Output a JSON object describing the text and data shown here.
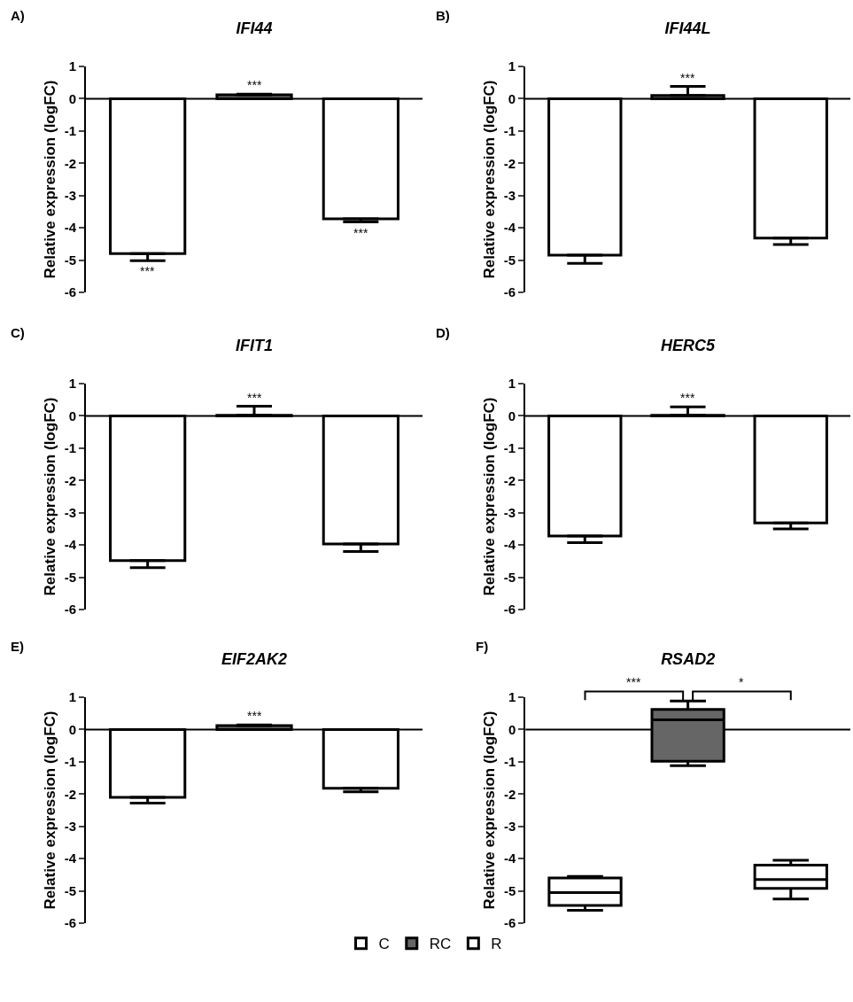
{
  "chart_data": [
    {
      "type": "bar",
      "subtitle": "A)",
      "title": "IFI44",
      "ref_lines": [
        {
          "axis": "y",
          "value": 0
        }
      ],
      "ylabel": "Relative expression (logFC)",
      "categories": [
        null
      ],
      "ylim": [
        -6,
        1
      ],
      "yticks": [
        -6,
        -5,
        -4,
        -3,
        -2,
        -1,
        0,
        1
      ],
      "grid": false,
      "legend": false,
      "tick_labels": "y",
      "series": [
        {
          "color": "#ffffff",
          "values": [
            -4.8
          ],
          "errors": [
            [
              -5.02,
              -4.8
            ]
          ],
          "value_labels": [
            "***"
          ]
        },
        {
          "color": "#666666",
          "values": [
            0.12
          ],
          "errors": [
            [
              0.12,
              0.14
            ]
          ],
          "value_labels": [
            "***"
          ]
        },
        {
          "color": "#ffffff",
          "values": [
            -3.72
          ],
          "errors": [
            [
              -3.82,
              -3.72
            ]
          ],
          "value_labels": [
            "***"
          ]
        }
      ]
    },
    {
      "type": "bar",
      "subtitle": "B)",
      "title": "IFI44L",
      "ref_lines": [
        {
          "axis": "y",
          "value": 0
        }
      ],
      "ylabel": "Relative expression (logFC)",
      "categories": [
        null
      ],
      "ylim": [
        -6,
        1
      ],
      "yticks": [
        -6,
        -5,
        -4,
        -3,
        -2,
        -1,
        0,
        1
      ],
      "grid": false,
      "legend": false,
      "tick_labels": "y",
      "series": [
        {
          "color": "#ffffff",
          "values": [
            -4.85
          ],
          "errors": [
            [
              -5.1,
              -4.85
            ]
          ]
        },
        {
          "color": "#666666",
          "values": [
            0.1
          ],
          "errors": [
            [
              0.1,
              0.38
            ]
          ],
          "value_labels": [
            "***"
          ]
        },
        {
          "color": "#ffffff",
          "values": [
            -4.32
          ],
          "errors": [
            [
              -4.52,
              -4.32
            ]
          ]
        }
      ]
    },
    {
      "type": "bar",
      "subtitle": "C)",
      "title": "IFIT1",
      "ref_lines": [
        {
          "axis": "y",
          "value": 0
        }
      ],
      "ylabel": "Relative expression (logFC)",
      "categories": [
        null
      ],
      "ylim": [
        -6,
        1
      ],
      "yticks": [
        -6,
        -5,
        -4,
        -3,
        -2,
        -1,
        0,
        1
      ],
      "grid": false,
      "legend": false,
      "tick_labels": "y",
      "series": [
        {
          "color": "#ffffff",
          "values": [
            -4.48
          ],
          "errors": [
            [
              -4.7,
              -4.48
            ]
          ]
        },
        {
          "color": "#666666",
          "values": [
            0.02
          ],
          "errors": [
            [
              0.02,
              0.3
            ]
          ],
          "value_labels": [
            "***"
          ]
        },
        {
          "color": "#ffffff",
          "values": [
            -3.97
          ],
          "errors": [
            [
              -4.2,
              -3.97
            ]
          ]
        }
      ]
    },
    {
      "type": "bar",
      "subtitle": "D)",
      "title": "HERC5",
      "ref_lines": [
        {
          "axis": "y",
          "value": 0
        }
      ],
      "ylabel": "Relative expression (logFC)",
      "categories": [
        null
      ],
      "ylim": [
        -6,
        1
      ],
      "yticks": [
        -6,
        -5,
        -4,
        -3,
        -2,
        -1,
        0,
        1
      ],
      "grid": false,
      "legend": false,
      "tick_labels": "y",
      "series": [
        {
          "color": "#ffffff",
          "values": [
            -3.72
          ],
          "errors": [
            [
              -3.93,
              -3.72
            ]
          ]
        },
        {
          "color": "#666666",
          "values": [
            0.02
          ],
          "errors": [
            [
              0.02,
              0.28
            ]
          ],
          "value_labels": [
            "***"
          ]
        },
        {
          "color": "#ffffff",
          "values": [
            -3.32
          ],
          "errors": [
            [
              -3.5,
              -3.32
            ]
          ]
        }
      ]
    },
    {
      "type": "bar",
      "subtitle": "E)",
      "title": "EIF2AK2",
      "ref_lines": [
        {
          "axis": "y",
          "value": 0
        }
      ],
      "ylabel": "Relative expression (logFC)",
      "categories": [
        null
      ],
      "ylim": [
        -6,
        1
      ],
      "yticks": [
        -6,
        -5,
        -4,
        -3,
        -2,
        -1,
        0,
        1
      ],
      "grid": false,
      "legend": false,
      "tick_labels": "y",
      "series": [
        {
          "color": "#ffffff",
          "values": [
            -2.1
          ],
          "errors": [
            [
              -2.28,
              -2.1
            ]
          ]
        },
        {
          "color": "#666666",
          "values": [
            0.12
          ],
          "errors": [
            [
              0.12,
              0.14
            ]
          ],
          "value_labels": [
            "***"
          ]
        },
        {
          "color": "#ffffff",
          "values": [
            -1.82
          ],
          "errors": [
            [
              -1.93,
              -1.82
            ]
          ]
        }
      ]
    },
    {
      "type": "box",
      "subtitle": "F)",
      "title": "RSAD2",
      "ref_lines": [
        {
          "axis": "y",
          "value": 0
        }
      ],
      "ylabel": "Relative expression (logFC)",
      "categories": [
        null
      ],
      "ylim": [
        -6,
        1
      ],
      "yticks": [
        -6,
        -5,
        -4,
        -3,
        -2,
        -1,
        0,
        1
      ],
      "grid": false,
      "legend": "bottom",
      "tick_labels": "y",
      "annotations": [
        "***",
        "*"
      ],
      "series": [
        {
          "name": "C",
          "color": "#ffffff",
          "boxes": [
            {
              "low": -5.6,
              "q1": -5.45,
              "median": -5.05,
              "q3": -4.6,
              "high": -4.55
            }
          ]
        },
        {
          "name": "RC",
          "color": "#666666",
          "boxes": [
            {
              "low": -1.12,
              "q1": -0.98,
              "median": 0.3,
              "q3": 0.62,
              "high": 0.88
            }
          ]
        },
        {
          "name": "R",
          "color": "#ffffff",
          "boxes": [
            {
              "low": -5.25,
              "q1": -4.92,
              "median": -4.65,
              "q3": -4.2,
              "high": -4.05
            }
          ]
        }
      ]
    }
  ]
}
